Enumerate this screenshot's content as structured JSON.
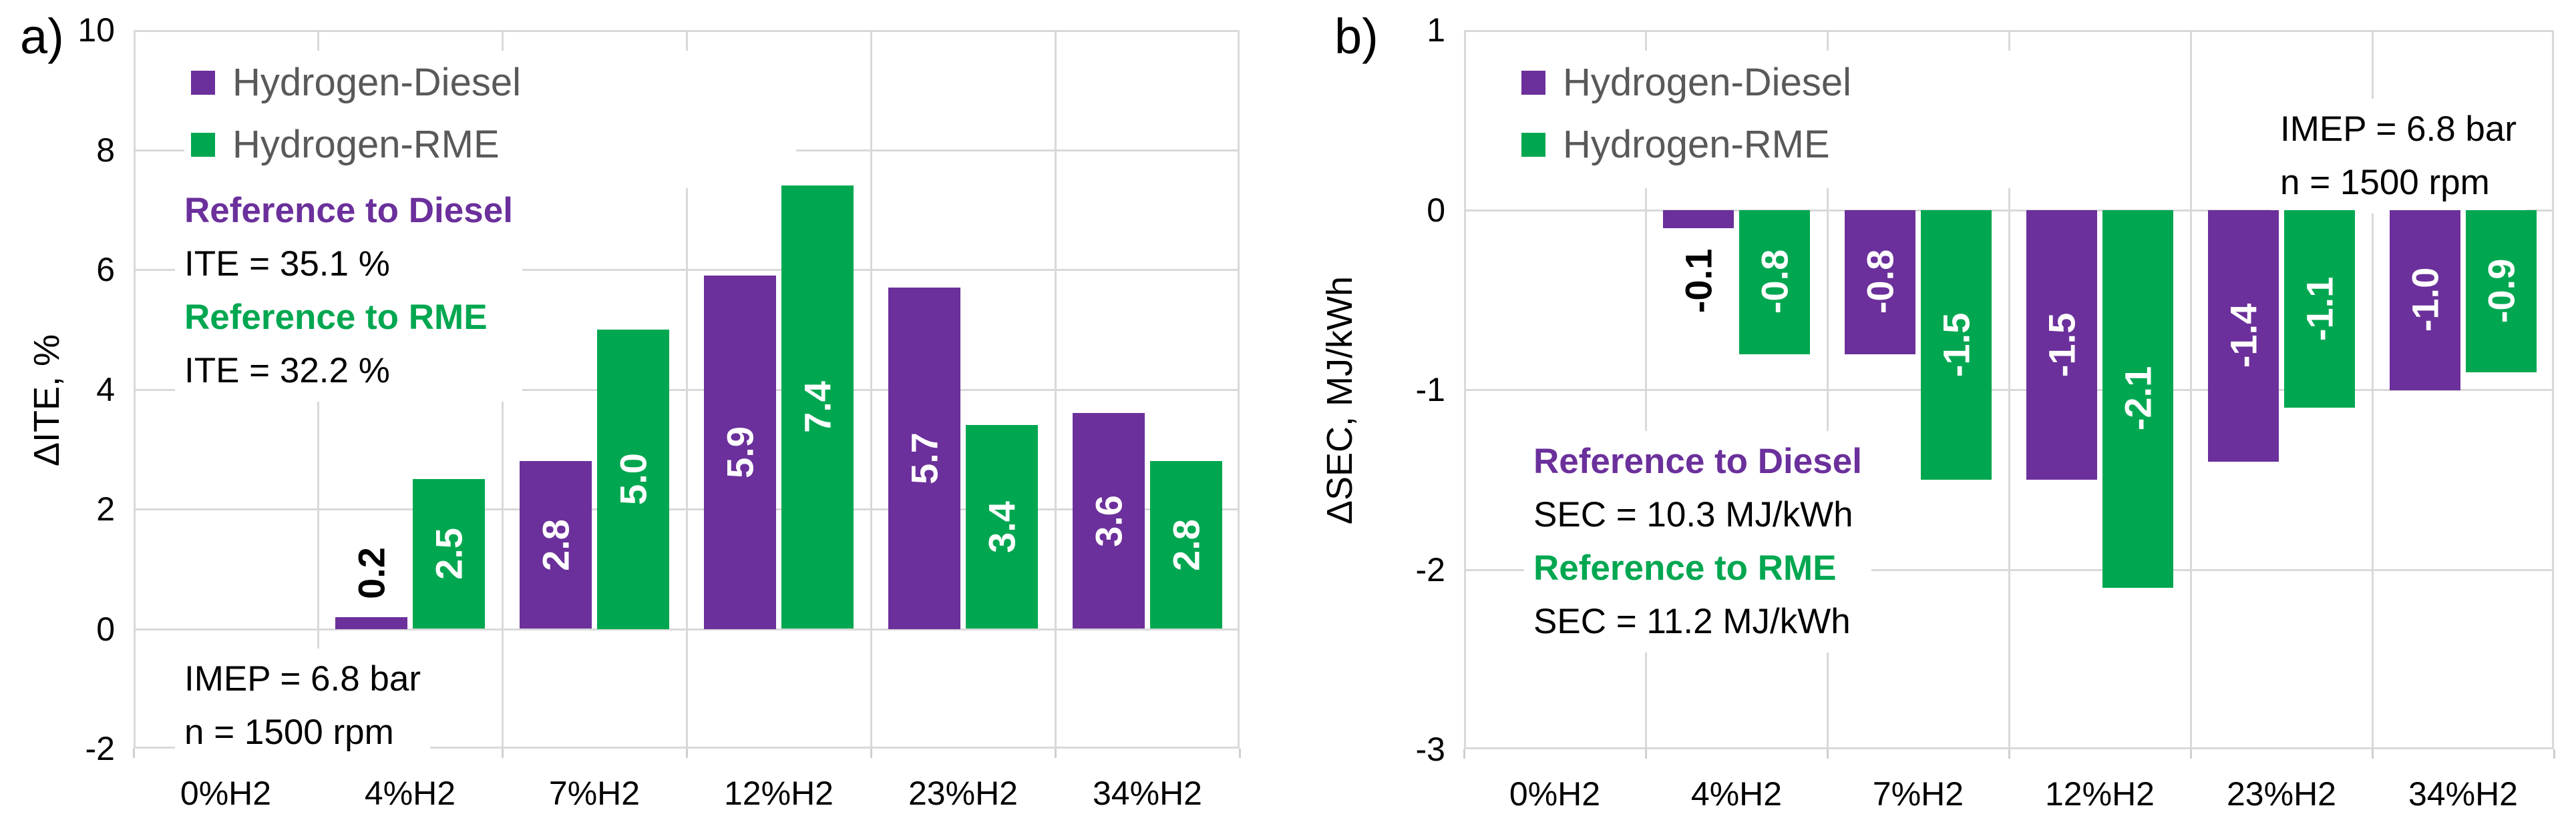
{
  "figure_background": "#FFFFFF",
  "colors": {
    "purple": "#6B309B",
    "green": "#00A750",
    "legend_text": "#595959",
    "grid": "#D9D9D9",
    "black": "#000000",
    "bar_label_white": "#FFFFFF"
  },
  "chart_data": [
    {
      "type": "bar",
      "panel_label": "a)",
      "y_axis_title": "ΔITE, %",
      "ylim": [
        -2,
        10
      ],
      "y_tick_labels": [
        "10",
        "8",
        "6",
        "4",
        "2",
        "0",
        "-2"
      ],
      "y_ticks": [
        10,
        8,
        6,
        4,
        2,
        0,
        -2
      ],
      "grid": "on",
      "legend_position": "top-left-inside",
      "categories": [
        "0%H2",
        "4%H2",
        "7%H2",
        "12%H2",
        "23%H2",
        "34%H2"
      ],
      "series": [
        {
          "name": "Hydrogen-Diesel",
          "color_key": "purple",
          "values": [
            null,
            0.2,
            2.8,
            5.9,
            5.7,
            3.6
          ],
          "labels": [
            null,
            "0.2",
            "2.8",
            "5.9",
            "5.7",
            "3.6"
          ]
        },
        {
          "name": "Hydrogen-RME",
          "color_key": "green",
          "values": [
            null,
            2.5,
            5.0,
            7.4,
            3.4,
            2.8
          ],
          "labels": [
            null,
            "2.5",
            "5.0",
            "7.4",
            "3.4",
            "2.8"
          ]
        }
      ],
      "annotations": [
        {
          "id": "reference-block",
          "lines": [
            {
              "text": "Reference to Diesel",
              "style": "purple"
            },
            {
              "text": "ITE = 35.1 %",
              "style": "black"
            },
            {
              "text": "Reference to RME",
              "style": "green"
            },
            {
              "text": "ITE = 32.2 %",
              "style": "black"
            }
          ]
        },
        {
          "id": "operating-conditions",
          "lines": [
            {
              "text": "IMEP = 6.8 bar",
              "style": "black"
            },
            {
              "text": "n = 1500 rpm",
              "style": "black"
            }
          ]
        }
      ]
    },
    {
      "type": "bar",
      "panel_label": "b)",
      "y_axis_title": "ΔSEC, MJ/kWh",
      "ylim": [
        -3,
        1
      ],
      "y_tick_labels": [
        "1",
        "0",
        "-1",
        "-2",
        "-3"
      ],
      "y_ticks": [
        1,
        0,
        -1,
        -2,
        -3
      ],
      "grid": "on",
      "legend_position": "top-left-inside",
      "categories": [
        "0%H2",
        "4%H2",
        "7%H2",
        "12%H2",
        "23%H2",
        "34%H2"
      ],
      "series": [
        {
          "name": "Hydrogen-Diesel",
          "color_key": "purple",
          "values": [
            null,
            -0.1,
            -0.8,
            -1.5,
            -1.4,
            -1.0
          ],
          "labels": [
            null,
            "-0.1",
            "-0.8",
            "-1.5",
            "-1.4",
            "-1.0"
          ]
        },
        {
          "name": "Hydrogen-RME",
          "color_key": "green",
          "values": [
            null,
            -0.8,
            -1.5,
            -2.1,
            -1.1,
            -0.9
          ],
          "labels": [
            null,
            "-0.8",
            "-1.5",
            "-2.1",
            "-1.1",
            "-0.9"
          ]
        }
      ],
      "annotations": [
        {
          "id": "operating-conditions",
          "lines": [
            {
              "text": "IMEP = 6.8 bar",
              "style": "black"
            },
            {
              "text": "n = 1500 rpm",
              "style": "black"
            }
          ]
        },
        {
          "id": "reference-block",
          "lines": [
            {
              "text": "Reference to Diesel",
              "style": "purple"
            },
            {
              "text": "SEC = 10.3 MJ/kWh",
              "style": "black"
            },
            {
              "text": "Reference to RME",
              "style": "green"
            },
            {
              "text": "SEC = 11.2 MJ/kWh",
              "style": "black"
            }
          ]
        }
      ]
    }
  ]
}
